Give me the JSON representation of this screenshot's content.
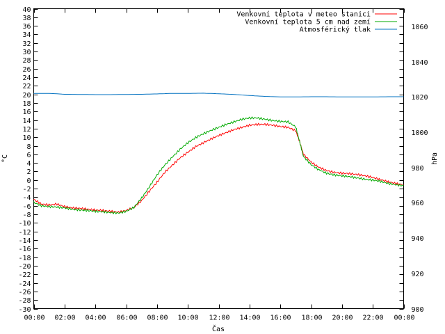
{
  "chart_data": {
    "type": "line",
    "xlabel": "Čas",
    "ylabel": "°C",
    "y2label": "hPa",
    "x_ticks": [
      "00:00",
      "02:00",
      "04:00",
      "06:00",
      "08:00",
      "10:00",
      "12:00",
      "14:00",
      "16:00",
      "18:00",
      "20:00",
      "22:00",
      "00:00"
    ],
    "xlim": [
      0,
      24
    ],
    "ylim": [
      -30,
      40
    ],
    "y_tick_step": 2,
    "y2lim": [
      900,
      1070
    ],
    "y2_tick_step": 20,
    "grid": false,
    "legend_position": "top-right",
    "series": [
      {
        "name": "Venkovní teplota v meteo stanici",
        "axis": "y",
        "color": "#ff0000",
        "x": [
          0,
          0.5,
          1,
          1.5,
          2,
          2.5,
          3,
          3.5,
          4,
          4.5,
          5,
          5.5,
          6,
          6.5,
          7,
          7.5,
          8,
          8.5,
          9,
          9.5,
          10,
          10.5,
          11,
          11.5,
          12,
          12.5,
          13,
          13.5,
          14,
          14.5,
          15,
          15.5,
          16,
          16.5,
          17,
          17.25,
          17.5,
          18,
          18.5,
          19,
          19.5,
          20,
          20.5,
          21,
          21.5,
          22,
          22.5,
          23,
          23.5,
          24
        ],
        "values": [
          -4.5,
          -5.6,
          -5.8,
          -5.6,
          -6.2,
          -6.5,
          -6.6,
          -6.8,
          -7.0,
          -7.1,
          -7.3,
          -7.5,
          -7.1,
          -6.4,
          -4.8,
          -2.6,
          -0.5,
          1.8,
          3.5,
          5.2,
          6.5,
          7.8,
          8.7,
          9.6,
          10.4,
          11.1,
          11.8,
          12.3,
          12.8,
          13.0,
          13.0,
          12.8,
          12.5,
          12.3,
          11.5,
          9.0,
          6.0,
          4.2,
          3.0,
          2.2,
          1.8,
          1.6,
          1.5,
          1.3,
          1.0,
          0.6,
          0.1,
          -0.4,
          -0.8,
          -1.1
        ]
      },
      {
        "name": "Venkovní teplota 5 cm nad zemí",
        "axis": "y",
        "color": "#00aa00",
        "x": [
          0,
          0.5,
          1,
          1.5,
          2,
          2.5,
          3,
          3.5,
          4,
          4.5,
          5,
          5.5,
          6,
          6.5,
          7,
          7.5,
          8,
          8.5,
          9,
          9.5,
          10,
          10.5,
          11,
          11.5,
          12,
          12.5,
          13,
          13.5,
          14,
          14.5,
          15,
          15.5,
          16,
          16.5,
          17,
          17.25,
          17.5,
          18,
          18.5,
          19,
          19.5,
          20,
          20.5,
          21,
          21.5,
          22,
          22.5,
          23,
          23.5,
          24
        ],
        "values": [
          -5.2,
          -6.0,
          -6.2,
          -6.3,
          -6.5,
          -6.8,
          -7.0,
          -7.1,
          -7.3,
          -7.4,
          -7.6,
          -7.7,
          -7.3,
          -6.4,
          -4.2,
          -1.6,
          1.2,
          3.5,
          5.4,
          7.2,
          8.7,
          9.9,
          10.8,
          11.6,
          12.3,
          13.0,
          13.6,
          14.2,
          14.5,
          14.5,
          14.2,
          13.9,
          13.7,
          13.6,
          12.4,
          9.0,
          5.5,
          3.6,
          2.4,
          1.6,
          1.2,
          1.0,
          0.8,
          0.5,
          0.2,
          0.0,
          -0.3,
          -0.8,
          -1.1,
          -1.3
        ]
      },
      {
        "name": "Atmosférický tlak",
        "axis": "y2",
        "color": "#0070c0",
        "x": [
          0,
          1,
          2,
          3,
          4,
          5,
          6,
          7,
          8,
          9,
          10,
          11,
          12,
          13,
          14,
          15,
          16,
          17,
          18,
          19,
          20,
          21,
          22,
          23,
          24
        ],
        "values": [
          1022,
          1022,
          1021.5,
          1021.4,
          1021.3,
          1021.3,
          1021.4,
          1021.5,
          1021.7,
          1022,
          1022,
          1022.1,
          1021.8,
          1021.4,
          1020.8,
          1020.3,
          1020,
          1020,
          1020.1,
          1020.1,
          1020,
          1020,
          1020,
          1020.1,
          1020.1
        ]
      }
    ]
  }
}
